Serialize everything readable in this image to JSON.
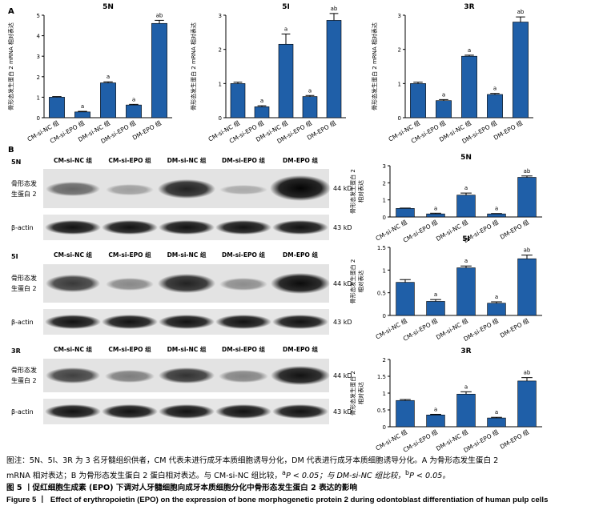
{
  "panels": {
    "A": "A",
    "B": "B"
  },
  "y_label_mrna": "骨形态发生蛋白 2 mRNA 相对表达",
  "y_label_protein_line1": "骨形态发生蛋白 2",
  "y_label_protein_line2": "相对表达",
  "groups": [
    "CM-si-NC 组",
    "CM-si-EPO 组",
    "DM-si-NC 组",
    "DM-si-EPO 组",
    "DM-EPO 组"
  ],
  "blot": {
    "protein_line1": "骨形态发",
    "protein_line2": "生蛋白 2",
    "actin_label": "β-actin",
    "kd_protein": "44 kD",
    "kd_actin": "43 kD",
    "donors": [
      "5N",
      "5I",
      "3R"
    ]
  },
  "chart_data": [
    {
      "type": "bar",
      "panel": "A",
      "title": "5N",
      "ylabel": "骨形态发生蛋白 2 mRNA 相对表达",
      "ylim": [
        0,
        5
      ],
      "yticks": [
        0,
        1,
        2,
        3,
        4,
        5
      ],
      "categories": [
        "CM-si-NC 组",
        "CM-si-EPO 组",
        "DM-si-NC 组",
        "DM-si-EPO 组",
        "DM-EPO 组"
      ],
      "values": [
        1.0,
        0.28,
        1.7,
        0.62,
        4.6
      ],
      "errors": [
        0.03,
        0.03,
        0.05,
        0.03,
        0.15
      ],
      "annotations": [
        "",
        "a",
        "a",
        "a",
        "ab"
      ]
    },
    {
      "type": "bar",
      "panel": "A",
      "title": "5I",
      "ylabel": "骨形态发生蛋白 2 mRNA 相对表达",
      "ylim": [
        0,
        3
      ],
      "yticks": [
        0,
        1,
        2,
        3
      ],
      "categories": [
        "CM-si-NC 组",
        "CM-si-EPO 组",
        "DM-si-NC 组",
        "DM-si-EPO 组",
        "DM-EPO 组"
      ],
      "values": [
        1.0,
        0.32,
        2.15,
        0.62,
        2.85
      ],
      "errors": [
        0.04,
        0.03,
        0.3,
        0.03,
        0.2
      ],
      "annotations": [
        "",
        "a",
        "a",
        "a",
        "ab"
      ]
    },
    {
      "type": "bar",
      "panel": "A",
      "title": "3R",
      "ylabel": "骨形态发生蛋白 2 mRNA 相对表达",
      "ylim": [
        0,
        3
      ],
      "yticks": [
        0,
        1,
        2,
        3
      ],
      "categories": [
        "CM-si-NC 组",
        "CM-si-EPO 组",
        "DM-si-NC 组",
        "DM-si-EPO 组",
        "DM-EPO 组"
      ],
      "values": [
        1.0,
        0.5,
        1.8,
        0.68,
        2.8
      ],
      "errors": [
        0.04,
        0.03,
        0.03,
        0.03,
        0.15
      ],
      "annotations": [
        "",
        "a",
        "a",
        "a",
        "ab"
      ]
    },
    {
      "type": "bar",
      "panel": "B",
      "title": "5N",
      "ylabel": "骨形态发生蛋白 2 相对表达",
      "ylim": [
        0,
        3
      ],
      "yticks": [
        0,
        1,
        2,
        3
      ],
      "categories": [
        "CM-si-NC 组",
        "CM-si-EPO 组",
        "DM-si-NC 组",
        "DM-si-EPO 组",
        "DM-EPO 组"
      ],
      "values": [
        0.5,
        0.18,
        1.28,
        0.18,
        2.32
      ],
      "errors": [
        0.02,
        0.04,
        0.12,
        0.02,
        0.08
      ],
      "annotations": [
        "",
        "a",
        "a",
        "a",
        "ab"
      ]
    },
    {
      "type": "bar",
      "panel": "B",
      "title": "5I",
      "ylabel": "骨形态发生蛋白 2 相对表达",
      "ylim": [
        0,
        1.5
      ],
      "yticks": [
        0,
        0.5,
        1.0,
        1.5
      ],
      "categories": [
        "CM-si-NC 组",
        "CM-si-EPO 组",
        "DM-si-NC 组",
        "DM-si-EPO 组",
        "DM-EPO 组"
      ],
      "values": [
        0.73,
        0.31,
        1.05,
        0.27,
        1.25
      ],
      "errors": [
        0.06,
        0.04,
        0.04,
        0.03,
        0.08
      ],
      "annotations": [
        "",
        "a",
        "a",
        "a",
        "ab"
      ]
    },
    {
      "type": "bar",
      "panel": "B",
      "title": "3R",
      "ylabel": "骨形态发生蛋白 2 相对表达",
      "ylim": [
        0,
        2
      ],
      "yticks": [
        0,
        0.5,
        1.0,
        1.5,
        2.0
      ],
      "categories": [
        "CM-si-NC 组",
        "CM-si-EPO 组",
        "DM-si-NC 组",
        "DM-si-EPO 组",
        "DM-EPO 组"
      ],
      "values": [
        0.78,
        0.35,
        0.97,
        0.26,
        1.36
      ],
      "errors": [
        0.03,
        0.02,
        0.07,
        0.02,
        0.1
      ],
      "annotations": [
        "",
        "a",
        "a",
        "a",
        "ab"
      ]
    }
  ],
  "caption": {
    "note_line1": "图注：5N、5I、3R 为 3 名牙髓组织供者，CM 代表未进行成牙本质细胞诱导分化，DM 代表进行成牙本质细胞诱导分化。A 为骨形态发生蛋白 2",
    "note_line2_pre": "mRNA 相对表达；B 为骨形态发生蛋白 2 蛋白相对表达。与 CM-si-NC 组比较，",
    "note_sup_a": "a",
    "note_p1": "P < 0.05；与 DM-si-NC 组比较，",
    "note_sup_b": "b",
    "note_p2": "P < 0.05。",
    "fig_cn": "图 5 丨促红细胞生成素 (EPO) 下调对人牙髓细胞向成牙本质细胞分化中骨形态发生蛋白 2 表达的影响",
    "fig_en_label": "Figure 5 丨",
    "fig_en": "Effect of erythropoietin (EPO) on the expression of bone morphogenetic protein 2 during odontoblast differentiation of human pulp cells"
  }
}
